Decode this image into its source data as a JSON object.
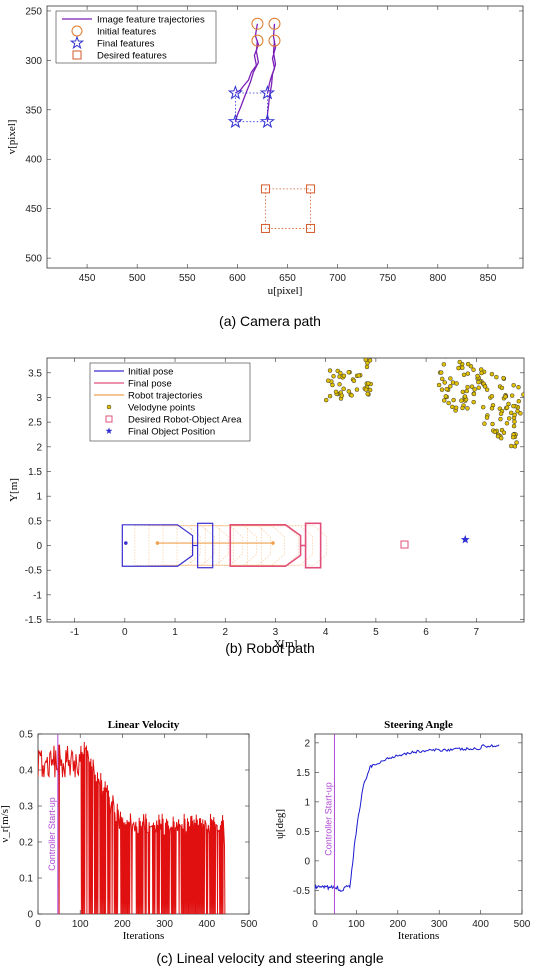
{
  "chart_data": [
    {
      "type": "line",
      "xlabel": "u[pixel]",
      "ylabel": "v[pixel]",
      "xlim": [
        410,
        885
      ],
      "ylim": [
        510,
        245
      ],
      "xticks": [
        450,
        500,
        550,
        600,
        650,
        700,
        750,
        800,
        850
      ],
      "yticks": [
        250,
        300,
        350,
        400,
        450,
        500
      ],
      "caption": "(a) Camera path",
      "legend": [
        "Image feature trajectories",
        "Initial features",
        "Final features",
        "Desired features"
      ],
      "colors": {
        "trajectory": "#7a1fb8",
        "initial": "#e07b2a",
        "final": "#2f2fd0",
        "desired": "#d45a2a"
      },
      "initial_features": [
        [
          620,
          263
        ],
        [
          637,
          263
        ],
        [
          620,
          280
        ],
        [
          637,
          280
        ]
      ],
      "final_features": [
        [
          598,
          333
        ],
        [
          630,
          333
        ],
        [
          598,
          362
        ],
        [
          630,
          362
        ]
      ],
      "desired_features": [
        [
          628,
          430
        ],
        [
          673,
          430
        ],
        [
          628,
          470
        ],
        [
          673,
          470
        ]
      ],
      "trajectories": [
        [
          [
            620,
            263
          ],
          [
            618,
            275
          ],
          [
            621,
            284
          ],
          [
            617,
            295
          ],
          [
            619,
            305
          ],
          [
            614,
            312
          ],
          [
            611,
            320
          ],
          [
            606,
            326
          ],
          [
            603,
            330
          ],
          [
            598,
            333
          ]
        ],
        [
          [
            637,
            263
          ],
          [
            636,
            276
          ],
          [
            638,
            287
          ],
          [
            635,
            298
          ],
          [
            637,
            308
          ],
          [
            634,
            316
          ],
          [
            632,
            323
          ],
          [
            631,
            329
          ],
          [
            630,
            333
          ]
        ],
        [
          [
            620,
            280
          ],
          [
            619,
            291
          ],
          [
            621,
            302
          ],
          [
            616,
            312
          ],
          [
            613,
            322
          ],
          [
            609,
            332
          ],
          [
            606,
            340
          ],
          [
            603,
            348
          ],
          [
            600,
            355
          ],
          [
            598,
            362
          ]
        ],
        [
          [
            637,
            280
          ],
          [
            636,
            292
          ],
          [
            638,
            304
          ],
          [
            635,
            314
          ],
          [
            634,
            325
          ],
          [
            632,
            336
          ],
          [
            631,
            346
          ],
          [
            630,
            354
          ],
          [
            630,
            362
          ]
        ]
      ]
    },
    {
      "type": "scatter",
      "xlabel": "X[m]",
      "ylabel": "Y[m]",
      "xlim": [
        -1.55,
        7.95
      ],
      "ylim": [
        -1.55,
        3.8
      ],
      "xticks": [
        -1,
        0,
        1,
        2,
        3,
        4,
        5,
        6,
        7
      ],
      "yticks": [
        -1.5,
        -1,
        -0.5,
        0,
        0.5,
        1,
        1.5,
        2,
        2.5,
        3,
        3.5
      ],
      "caption": "(b) Robot path",
      "legend": [
        "Initial pose",
        "Final pose",
        "Robot trajectories",
        "Velodyne points",
        "Desired Robot-Object Area",
        "Final Object Position"
      ],
      "colors": {
        "initial": "#3a2fd0",
        "final": "#e0507a",
        "trajectory": "#f0a050",
        "velodyne": "#e0c000",
        "desired": "#e0507a",
        "object": "#2f2fd0"
      },
      "initial_pose_x": 0,
      "final_pose_x": 2.9,
      "desired_area": [
        5.57,
        0.02
      ],
      "final_object": [
        6.78,
        0.12
      ]
    },
    {
      "type": "line",
      "title": "Linear Velocity",
      "xlabel": "Iterations",
      "ylabel": "ν_r[m/s]",
      "xlim": [
        0,
        500
      ],
      "ylim": [
        0,
        0.5
      ],
      "xticks": [
        0,
        100,
        200,
        300,
        400,
        500
      ],
      "yticks": [
        0,
        0.1,
        0.2,
        0.3,
        0.4,
        0.5
      ],
      "startup_x": 47,
      "startup_label": "Controller Start-up",
      "series": [
        {
          "color": "#e01010"
        }
      ]
    },
    {
      "type": "line",
      "title": "Steering Angle",
      "xlabel": "Iterations",
      "ylabel": "ψ[deg]",
      "xlim": [
        0,
        500
      ],
      "ylim": [
        -0.9,
        2.15
      ],
      "xticks": [
        0,
        100,
        200,
        300,
        400,
        500
      ],
      "yticks": [
        -0.5,
        0,
        0.5,
        1,
        1.5,
        2
      ],
      "startup_x": 47,
      "startup_label": "Controller Start-up",
      "caption": "(c) Lineal velocity and steering angle",
      "series": [
        {
          "color": "#1a1ad0"
        }
      ]
    }
  ]
}
